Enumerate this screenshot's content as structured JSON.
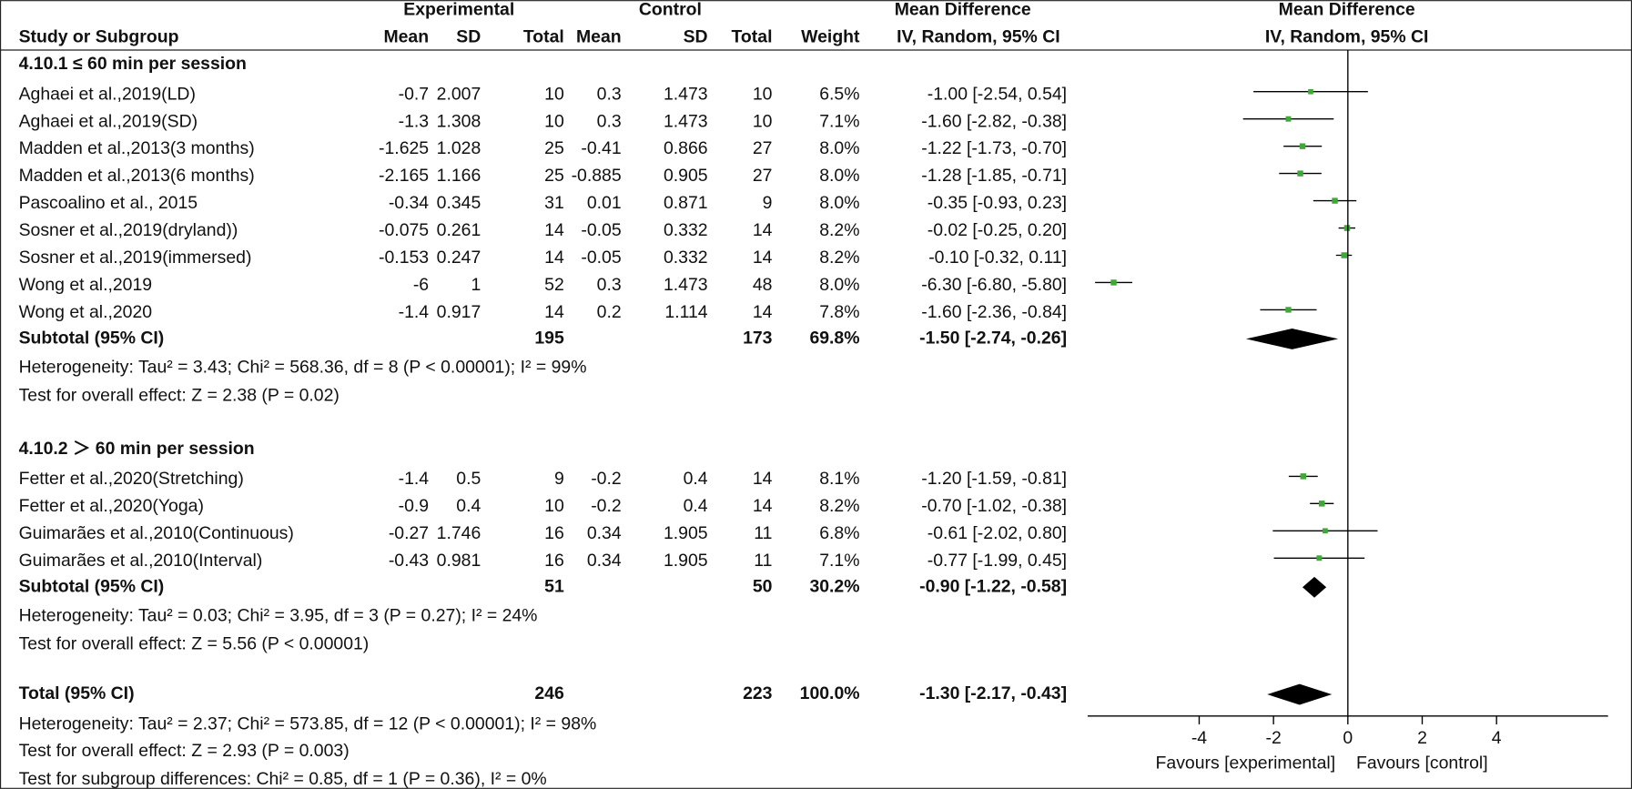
{
  "chart_data": {
    "type": "forest",
    "headers": {
      "experimental": "Experimental",
      "control": "Control",
      "md_left": "Mean Difference",
      "md_right": "Mean Difference",
      "study": "Study or Subgroup",
      "cols": [
        "Mean",
        "SD",
        "Total",
        "Mean",
        "SD",
        "Total",
        "Weight"
      ],
      "method_left": "IV, Random, 95% CI",
      "method_right": "IV, Random, 95% CI"
    },
    "groups": [
      {
        "title": "4.10.1 ≤ 60 min per session",
        "studies": [
          {
            "study": "Aghaei et al.,2019(LD)",
            "exp_mean": -0.7,
            "exp_sd": 2.007,
            "exp_total": 10,
            "ctl_mean": 0.3,
            "ctl_sd": 1.473,
            "ctl_total": 10,
            "weight": 6.5,
            "weight_label": "6.5%",
            "md": -1,
            "lo": -2.54,
            "hi": 0.54,
            "ci_label": "-1.00 [-2.54, 0.54]"
          },
          {
            "study": "Aghaei et al.,2019(SD)",
            "exp_mean": -1.3,
            "exp_sd": 1.308,
            "exp_total": 10,
            "ctl_mean": 0.3,
            "ctl_sd": 1.473,
            "ctl_total": 10,
            "weight": 7.1,
            "weight_label": "7.1%",
            "md": -1.6,
            "lo": -2.82,
            "hi": -0.38,
            "ci_label": "-1.60 [-2.82, -0.38]"
          },
          {
            "study": "Madden et al.,2013(3 months)",
            "exp_mean": -1.625,
            "exp_sd": 1.028,
            "exp_total": 25,
            "ctl_mean": -0.41,
            "ctl_sd": 0.866,
            "ctl_total": 27,
            "weight": 8.0,
            "weight_label": "8.0%",
            "md": -1.22,
            "lo": -1.73,
            "hi": -0.7,
            "ci_label": "-1.22 [-1.73, -0.70]"
          },
          {
            "study": "Madden et al.,2013(6 months)",
            "exp_mean": -2.165,
            "exp_sd": 1.166,
            "exp_total": 25,
            "ctl_mean": -0.885,
            "ctl_sd": 0.905,
            "ctl_total": 27,
            "weight": 8.0,
            "weight_label": "8.0%",
            "md": -1.28,
            "lo": -1.85,
            "hi": -0.71,
            "ci_label": "-1.28 [-1.85, -0.71]"
          },
          {
            "study": "Pascoalino et al., 2015",
            "exp_mean": -0.34,
            "exp_sd": 0.345,
            "exp_total": 31,
            "ctl_mean": 0.01,
            "ctl_sd": 0.871,
            "ctl_total": 9,
            "weight": 8.0,
            "weight_label": "8.0%",
            "md": -0.35,
            "lo": -0.93,
            "hi": 0.23,
            "ci_label": "-0.35 [-0.93, 0.23]"
          },
          {
            "study": "Sosner et al.,2019(dryland))",
            "exp_mean": -0.075,
            "exp_sd": 0.261,
            "exp_total": 14,
            "ctl_mean": -0.05,
            "ctl_sd": 0.332,
            "ctl_total": 14,
            "weight": 8.2,
            "weight_label": "8.2%",
            "md": -0.02,
            "lo": -0.25,
            "hi": 0.2,
            "ci_label": "-0.02 [-0.25, 0.20]"
          },
          {
            "study": "Sosner et al.,2019(immersed)",
            "exp_mean": -0.153,
            "exp_sd": 0.247,
            "exp_total": 14,
            "ctl_mean": -0.05,
            "ctl_sd": 0.332,
            "ctl_total": 14,
            "weight": 8.2,
            "weight_label": "8.2%",
            "md": -0.1,
            "lo": -0.32,
            "hi": 0.11,
            "ci_label": "-0.10 [-0.32, 0.11]"
          },
          {
            "study": "Wong et al.,2019",
            "exp_mean": -6,
            "exp_sd": 1,
            "exp_total": 52,
            "ctl_mean": 0.3,
            "ctl_sd": 1.473,
            "ctl_total": 48,
            "weight": 8.0,
            "weight_label": "8.0%",
            "md": -6.3,
            "lo": -6.8,
            "hi": -5.8,
            "ci_label": "-6.30 [-6.80, -5.80]"
          },
          {
            "study": "Wong et al.,2020",
            "exp_mean": -1.4,
            "exp_sd": 0.917,
            "exp_total": 14,
            "ctl_mean": 0.2,
            "ctl_sd": 1.114,
            "ctl_total": 14,
            "weight": 7.8,
            "weight_label": "7.8%",
            "md": -1.6,
            "lo": -2.36,
            "hi": -0.84,
            "ci_label": "-1.60 [-2.36, -0.84]"
          }
        ],
        "subtotal": {
          "label": "Subtotal (95% CI)",
          "exp_total": 195,
          "ctl_total": 173,
          "weight_label": "69.8%",
          "md": -1.5,
          "lo": -2.74,
          "hi": -0.26,
          "ci_label": "-1.50 [-2.74, -0.26]"
        },
        "heterogeneity": "Heterogeneity: Tau² = 3.43; Chi² = 568.36, df = 8 (P < 0.00001); I² = 99%",
        "overall": "Test for overall effect: Z = 2.38 (P = 0.02)"
      },
      {
        "title": "4.10.2 ＞ 60 min per session",
        "studies": [
          {
            "study": "Fetter et al.,2020(Stretching)",
            "exp_mean": -1.4,
            "exp_sd": 0.5,
            "exp_total": 9,
            "ctl_mean": -0.2,
            "ctl_sd": 0.4,
            "ctl_total": 14,
            "weight": 8.1,
            "weight_label": "8.1%",
            "md": -1.2,
            "lo": -1.59,
            "hi": -0.81,
            "ci_label": "-1.20 [-1.59, -0.81]"
          },
          {
            "study": "Fetter et al.,2020(Yoga)",
            "exp_mean": -0.9,
            "exp_sd": 0.4,
            "exp_total": 10,
            "ctl_mean": -0.2,
            "ctl_sd": 0.4,
            "ctl_total": 14,
            "weight": 8.2,
            "weight_label": "8.2%",
            "md": -0.7,
            "lo": -1.02,
            "hi": -0.38,
            "ci_label": "-0.70 [-1.02, -0.38]"
          },
          {
            "study": "Guimarães et al.,2010(Continuous)",
            "exp_mean": -0.27,
            "exp_sd": 1.746,
            "exp_total": 16,
            "ctl_mean": 0.34,
            "ctl_sd": 1.905,
            "ctl_total": 11,
            "weight": 6.8,
            "weight_label": "6.8%",
            "md": -0.61,
            "lo": -2.02,
            "hi": 0.8,
            "ci_label": "-0.61 [-2.02, 0.80]"
          },
          {
            "study": "Guimarães et al.,2010(Interval)",
            "exp_mean": -0.43,
            "exp_sd": 0.981,
            "exp_total": 16,
            "ctl_mean": 0.34,
            "ctl_sd": 1.905,
            "ctl_total": 11,
            "weight": 7.1,
            "weight_label": "7.1%",
            "md": -0.77,
            "lo": -1.99,
            "hi": 0.45,
            "ci_label": "-0.77 [-1.99, 0.45]"
          }
        ],
        "subtotal": {
          "label": "Subtotal (95% CI)",
          "exp_total": 51,
          "ctl_total": 50,
          "weight_label": "30.2%",
          "md": -0.9,
          "lo": -1.22,
          "hi": -0.58,
          "ci_label": "-0.90 [-1.22, -0.58]"
        },
        "heterogeneity": "Heterogeneity: Tau² = 0.03; Chi² = 3.95, df = 3 (P = 0.27); I² = 24%",
        "overall": "Test for overall effect: Z = 5.56 (P < 0.00001)"
      }
    ],
    "total": {
      "label": "Total (95% CI)",
      "exp_total": 246,
      "ctl_total": 223,
      "weight_label": "100.0%",
      "md": -1.3,
      "lo": -2.17,
      "hi": -0.43,
      "ci_label": "-1.30 [-2.17, -0.43]"
    },
    "total_heterogeneity": "Heterogeneity: Tau² = 2.37; Chi² = 573.85, df = 12 (P < 0.00001); I² = 98%",
    "total_overall": "Test for overall effect: Z = 2.93 (P = 0.003)",
    "subgroup_differences": "Test for subgroup differences: Chi² = 0.85, df = 1 (P = 0.36), I² = 0%",
    "xlim": [
      -7,
      7
    ],
    "xticks": [
      -4,
      -2,
      0,
      2,
      4
    ],
    "favours_left": "Favours [experimental]",
    "favours_right": "Favours [control]",
    "square_color": "#3daa35",
    "diamond_color": "#000000"
  }
}
